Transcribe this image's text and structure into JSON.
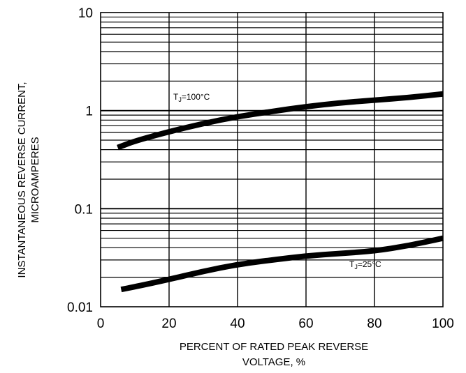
{
  "chart_data": {
    "type": "line",
    "xlabel": [
      "PERCENT OF RATED PEAK REVERSE",
      "VOLTAGE, %"
    ],
    "ylabel": [
      "INSTANTANEOUS REVERSE CURRENT,",
      "MICROAMPERES"
    ],
    "xlim": [
      0,
      100
    ],
    "ylim": [
      0.01,
      10
    ],
    "yscale": "log",
    "grid": true,
    "x_ticks": [
      "0",
      "20",
      "40",
      "60",
      "80",
      "100"
    ],
    "y_ticks": [
      "0.01",
      "0.1",
      "1",
      "10"
    ],
    "series": [
      {
        "name": "TJ=100°C",
        "label_main": "T",
        "label_sub": "J",
        "label_rest": "=100°C",
        "x": [
          5,
          10,
          20,
          30,
          40,
          50,
          60,
          70,
          80,
          90,
          100
        ],
        "y": [
          0.42,
          0.49,
          0.61,
          0.74,
          0.87,
          0.98,
          1.1,
          1.2,
          1.28,
          1.36,
          1.48
        ]
      },
      {
        "name": "TJ=25°C",
        "label_main": "T",
        "label_sub": "J",
        "label_rest": "=25°C",
        "x": [
          6,
          10,
          20,
          30,
          40,
          50,
          60,
          70,
          80,
          90,
          100
        ],
        "y": [
          0.015,
          0.016,
          0.019,
          0.023,
          0.027,
          0.03,
          0.033,
          0.035,
          0.037,
          0.042,
          0.05
        ]
      }
    ]
  }
}
